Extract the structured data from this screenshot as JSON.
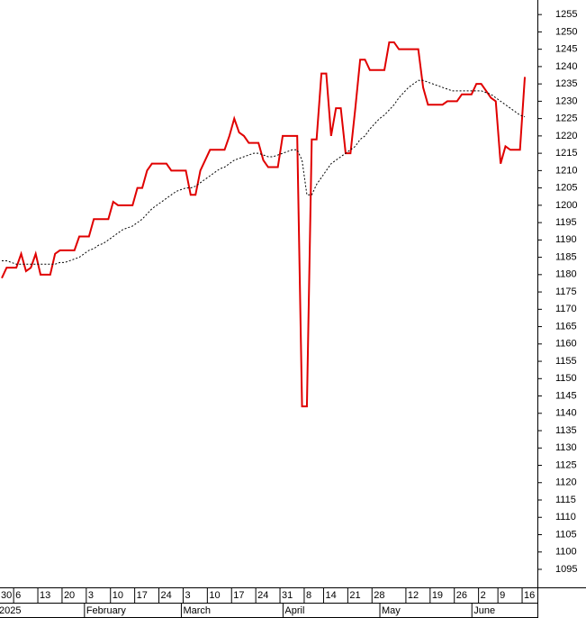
{
  "chart_data": {
    "type": "line",
    "categories": [
      "30",
      null,
      null,
      "6",
      null,
      null,
      null,
      null,
      "13",
      null,
      null,
      null,
      null,
      "20",
      null,
      null,
      null,
      null,
      "3",
      null,
      null,
      null,
      null,
      "10",
      null,
      null,
      null,
      null,
      "17",
      null,
      null,
      null,
      null,
      "24",
      null,
      null,
      null,
      null,
      "3",
      null,
      null,
      null,
      null,
      "10",
      null,
      null,
      null,
      null,
      "17",
      null,
      null,
      null,
      null,
      "24",
      null,
      null,
      null,
      null,
      "31",
      null,
      null,
      null,
      null,
      "8",
      null,
      null,
      null,
      "14",
      null,
      null,
      null,
      null,
      "21",
      null,
      null,
      null,
      null,
      "28",
      null,
      null,
      null,
      null,
      null,
      null,
      "12",
      null,
      null,
      null,
      null,
      "19",
      null,
      null,
      null,
      null,
      "26",
      null,
      null,
      null,
      null,
      "2",
      null,
      null,
      null,
      "9",
      null,
      null,
      null,
      null,
      "16"
    ],
    "months": [
      "2025",
      null,
      null,
      null,
      null,
      null,
      null,
      null,
      null,
      null,
      null,
      null,
      null,
      null,
      null,
      null,
      null,
      null,
      "February",
      null,
      null,
      null,
      null,
      null,
      null,
      null,
      null,
      null,
      null,
      null,
      null,
      null,
      null,
      null,
      null,
      null,
      null,
      null,
      "March",
      null,
      null,
      null,
      null,
      null,
      null,
      null,
      null,
      null,
      null,
      null,
      null,
      null,
      null,
      null,
      null,
      null,
      null,
      null,
      null,
      "April",
      null,
      null,
      null,
      null,
      null,
      null,
      null,
      null,
      null,
      null,
      null,
      null,
      null,
      null,
      null,
      null,
      null,
      null,
      null,
      "May",
      null,
      null,
      null,
      null,
      null,
      null,
      null,
      null,
      null,
      null,
      null,
      null,
      null,
      null,
      null,
      null,
      null,
      null,
      "June",
      null,
      null,
      null,
      null,
      null,
      null,
      null,
      null,
      null
    ],
    "series": [
      {
        "color": "#e00000",
        "style": "solid",
        "values": [
          1179,
          1182,
          1182,
          1182,
          1186,
          1181,
          1182,
          1186,
          1180,
          1180,
          1180,
          1186,
          1187,
          1187,
          1187,
          1187,
          1191,
          1191,
          1191,
          1196,
          1196,
          1196,
          1196,
          1201,
          1200,
          1200,
          1200,
          1200,
          1205,
          1205,
          1210,
          1212,
          1212,
          1212,
          1212,
          1210,
          1210,
          1210,
          1210,
          1203,
          1203,
          1210,
          1213,
          1216,
          1216,
          1216,
          1216,
          1220,
          1225,
          1221,
          1220,
          1218,
          1218,
          1218,
          1213,
          1211,
          1211,
          1211,
          1220,
          1220,
          1220,
          1220,
          1142,
          1142,
          1219,
          1219,
          1238,
          1238,
          1220,
          1228,
          1228,
          1215,
          1215,
          1228,
          1242,
          1242,
          1239,
          1239,
          1239,
          1239,
          1247,
          1247,
          1245,
          1245,
          1245,
          1245,
          1245,
          1234,
          1229,
          1229,
          1229,
          1229,
          1230,
          1230,
          1230,
          1232,
          1232,
          1232,
          1235,
          1235,
          1233,
          1231,
          1230,
          1212,
          1217,
          1216,
          1216,
          1216,
          1237
        ]
      },
      {
        "color": "#000000",
        "style": "dotted",
        "values": [
          1184,
          1184,
          1183.5,
          1183,
          1183,
          1183,
          1183,
          1183,
          1183,
          1183,
          1183,
          1183,
          1183.5,
          1183.5,
          1184,
          1184.5,
          1185,
          1186,
          1187,
          1187.5,
          1188.5,
          1189,
          1190,
          1191,
          1192,
          1193,
          1193.5,
          1194,
          1195,
          1196,
          1197.5,
          1199,
          1200,
          1201,
          1202,
          1203,
          1204,
          1204.5,
          1205,
          1205,
          1205.5,
          1206.5,
          1207.5,
          1208.5,
          1209.5,
          1210.5,
          1211,
          1212,
          1213,
          1213.5,
          1214,
          1214.5,
          1215,
          1215,
          1214.5,
          1214,
          1214,
          1214.5,
          1215,
          1215.5,
          1216,
          1216,
          1213,
          1203,
          1203,
          1206,
          1208,
          1210,
          1212,
          1213,
          1214,
          1215,
          1216,
          1217,
          1219,
          1220,
          1222,
          1223.5,
          1225,
          1226,
          1227.5,
          1229,
          1231,
          1232.5,
          1234,
          1235,
          1236,
          1236,
          1235.5,
          1235,
          1234.5,
          1234,
          1233.5,
          1233,
          1233,
          1233,
          1233,
          1233,
          1233,
          1233,
          1232.5,
          1232,
          1231,
          1230,
          1229,
          1228,
          1227,
          1226,
          1225.5
        ]
      }
    ],
    "ylim": [
      1089.8,
      1259.2
    ],
    "yticks": [
      1095,
      1100,
      1105,
      1110,
      1115,
      1120,
      1125,
      1130,
      1135,
      1140,
      1145,
      1150,
      1155,
      1160,
      1165,
      1170,
      1175,
      1180,
      1185,
      1190,
      1195,
      1200,
      1205,
      1210,
      1215,
      1220,
      1225,
      1230,
      1235,
      1240,
      1245,
      1250,
      1255
    ],
    "y_axis_side": "right",
    "grid": false
  }
}
